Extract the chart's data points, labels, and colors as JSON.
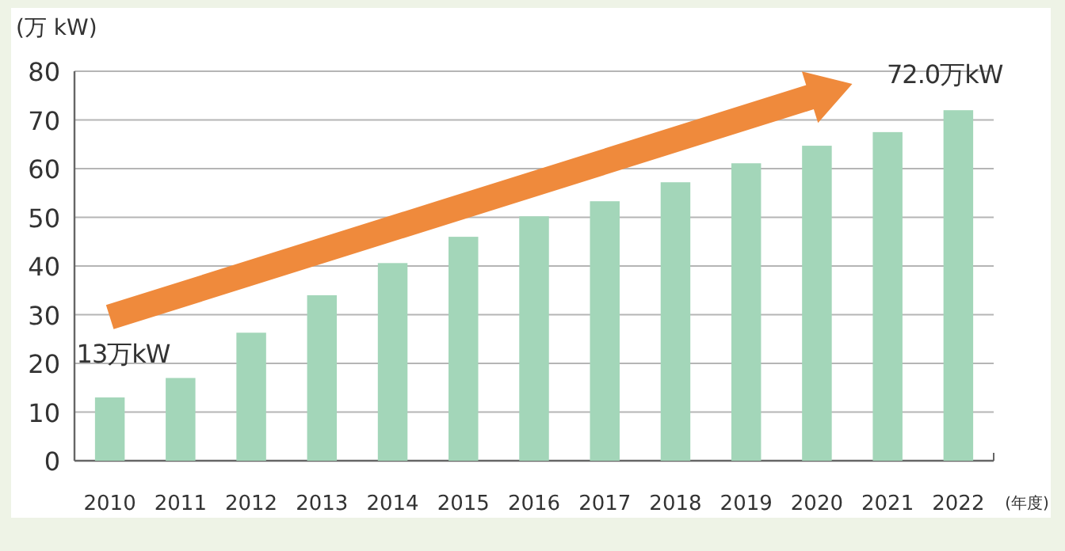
{
  "chart_data": {
    "type": "bar",
    "ylabel": "(万 kW)",
    "xlabel": "(年度)",
    "categories": [
      "2010",
      "2011",
      "2012",
      "2013",
      "2014",
      "2015",
      "2016",
      "2017",
      "2018",
      "2019",
      "2020",
      "2021",
      "2022"
    ],
    "values": [
      13,
      17,
      26.3,
      34,
      40.6,
      46,
      50.2,
      53.3,
      57.2,
      61.1,
      64.7,
      67.5,
      72.0
    ],
    "color": "#a3d6b9",
    "ylim": [
      0,
      80
    ],
    "yticks": [
      0,
      10,
      20,
      30,
      40,
      50,
      60,
      70,
      80
    ],
    "grid": "y",
    "annotations": [
      {
        "text": "13万kW",
        "x": "2010",
        "y": 13
      },
      {
        "text": "72.0万kW",
        "x": "2022",
        "y": 72.0
      }
    ]
  }
}
